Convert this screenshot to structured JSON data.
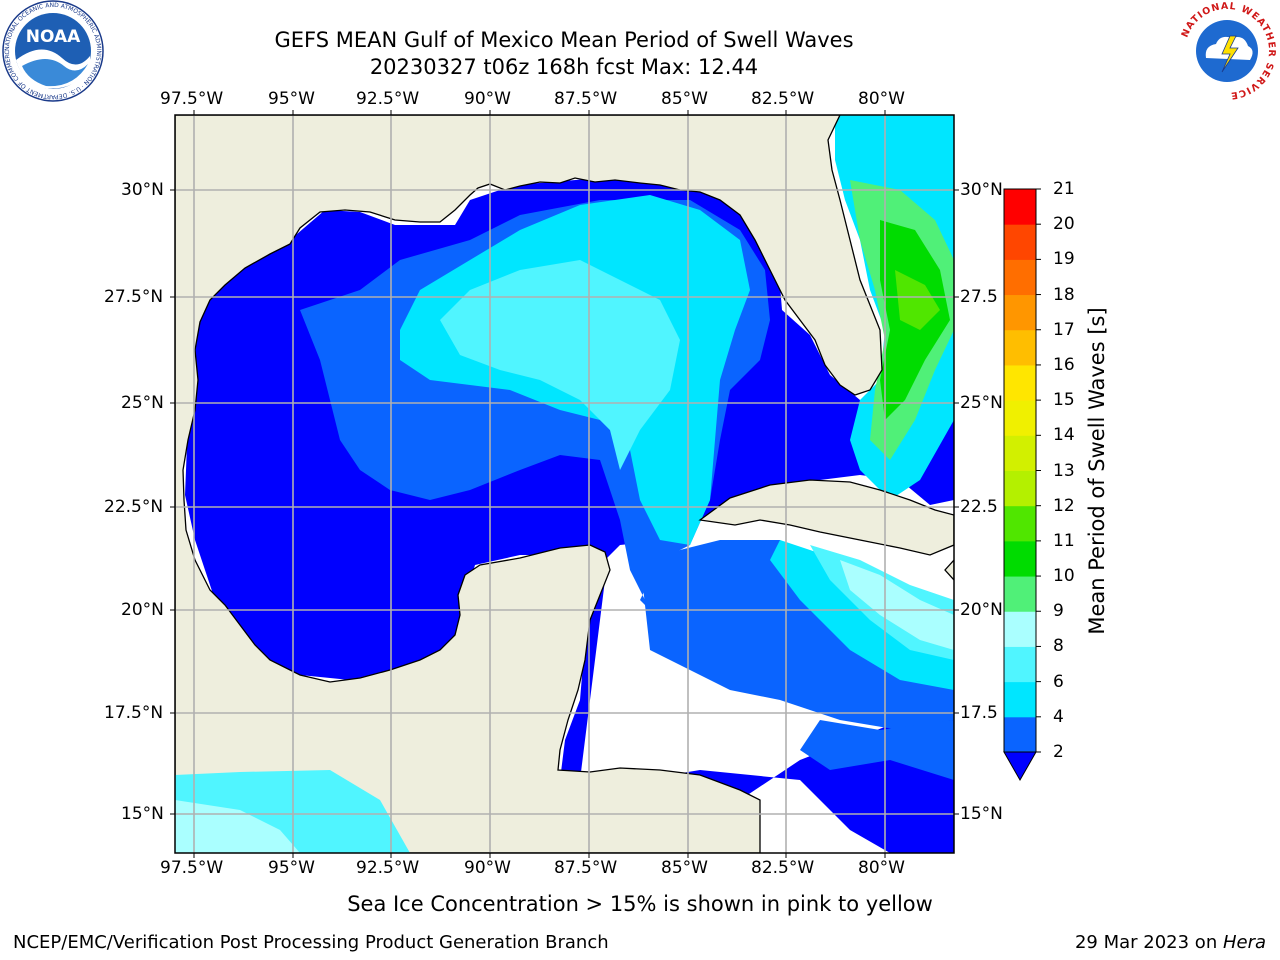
{
  "header": {
    "title_line1": "GEFS MEAN Gulf of Mexico Mean Period of Swell Waves",
    "title_line2": "20230327 t06z 168h fcst   Max: 12.44"
  },
  "logos": {
    "left": "NOAA",
    "left_ring": "NATIONAL OCEANIC AND ATMOSPHERIC ADMINISTRATION · U.S. DEPARTMENT OF COMMERCE",
    "right_ring": "NATIONAL WEATHER SERVICE"
  },
  "map": {
    "lon_labels": [
      "97.5°W",
      "95°W",
      "92.5°W",
      "90°W",
      "87.5°W",
      "85°W",
      "82.5°W",
      "80°W"
    ],
    "lat_labels_left": [
      "30°N",
      "27.5°N",
      "25°N",
      "22.5°N",
      "20°N",
      "17.5°N",
      "15°N"
    ],
    "lat_labels_right": [
      "30°N",
      "27.5",
      "25°N",
      "22.5",
      "20°N",
      "17.5",
      "15°N"
    ],
    "colors": {
      "land": "#eeeedd",
      "coast": "#000000",
      "grid": "#b0b0b0",
      "no_data": "#ffffff"
    }
  },
  "colorbar": {
    "label": "Mean Period of Swell Waves [s]",
    "ticks": [
      "2",
      "4",
      "6",
      "8",
      "9",
      "10",
      "11",
      "12",
      "13",
      "14",
      "15",
      "16",
      "17",
      "18",
      "19",
      "20",
      "21"
    ],
    "colors": [
      "#0a64ff",
      "#00e6ff",
      "#50f5ff",
      "#aaffff",
      "#50f078",
      "#00dc00",
      "#50e600",
      "#b4f000",
      "#d2f000",
      "#f0f000",
      "#ffe600",
      "#ffbe00",
      "#ff9600",
      "#ff6e00",
      "#ff4600",
      "#ff0000"
    ],
    "under_color": "#0000ff"
  },
  "footer": {
    "note": "Sea Ice Concentration > 15% is shown in pink to yellow",
    "credit": "NCEP/EMC/Verification Post Processing Product Generation Branch",
    "date": "29 Mar 2023 on ",
    "machine": "Hera"
  }
}
